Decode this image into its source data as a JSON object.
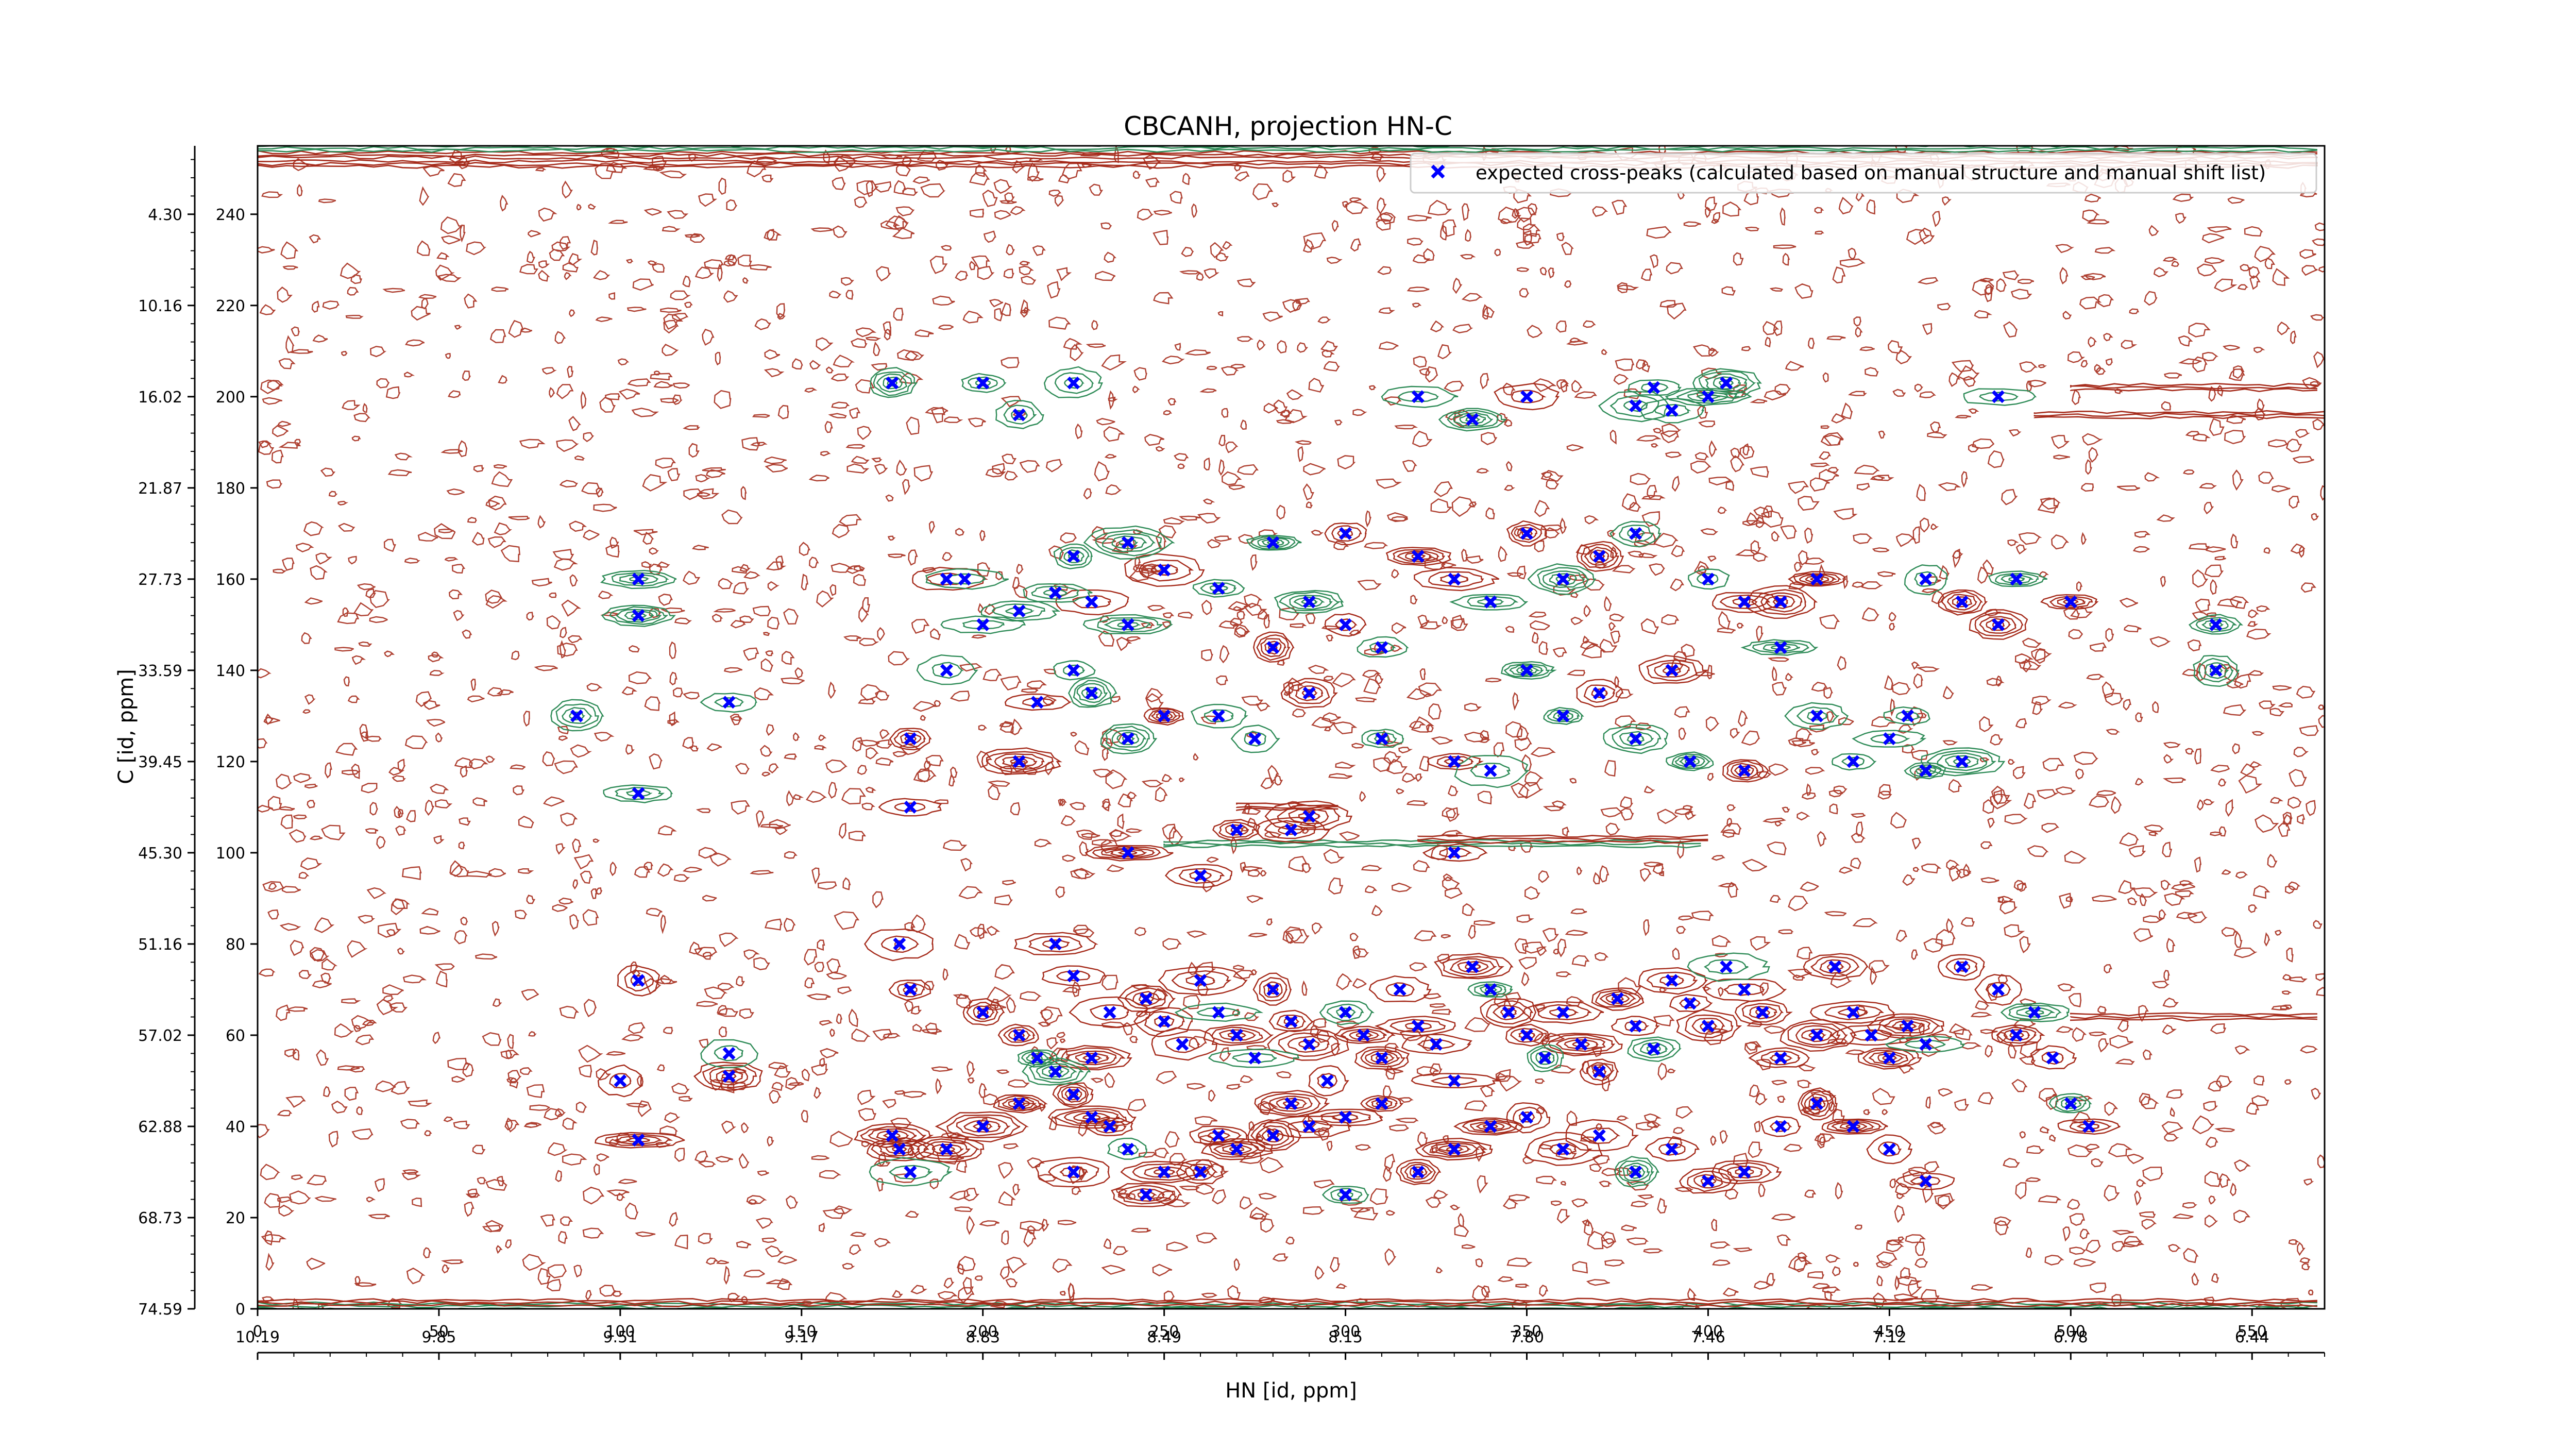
{
  "chart_data": {
    "type": "scatter",
    "title": "CBCANH, projection HN-C",
    "xlabel": "HN [id, ppm]",
    "ylabel": "C [id, ppm]",
    "xlim": [
      0,
      570
    ],
    "ylim": [
      0,
      255
    ],
    "x_ticks_primary": [
      "0",
      "50",
      "100",
      "150",
      "200",
      "250",
      "300",
      "350",
      "400",
      "450",
      "500",
      "550"
    ],
    "x_ticks_primary_values": [
      0,
      50,
      100,
      150,
      200,
      250,
      300,
      350,
      400,
      450,
      500,
      550
    ],
    "x_ticks_ppm": [
      "10.19",
      "9.85",
      "9.51",
      "9.17",
      "8.83",
      "8.49",
      "8.15",
      "7.80",
      "7.46",
      "7.12",
      "6.78",
      "6.44"
    ],
    "y_ticks_primary": [
      "0",
      "20",
      "40",
      "60",
      "80",
      "100",
      "120",
      "140",
      "160",
      "180",
      "200",
      "220",
      "240"
    ],
    "y_ticks_primary_values": [
      0,
      20,
      40,
      60,
      80,
      100,
      120,
      140,
      160,
      180,
      200,
      220,
      240
    ],
    "y_ticks_ppm": [
      "74.59",
      "68.73",
      "62.88",
      "57.02",
      "51.16",
      "45.30",
      "39.45",
      "33.59",
      "27.73",
      "21.87",
      "16.02",
      "10.16",
      "4.30"
    ],
    "legend_position": "top-right",
    "grid": false,
    "colors": {
      "expected_peaks": "#0000ff",
      "positive_contours": "#a52a1a",
      "negative_contours": "#2e8b57"
    },
    "series": [
      {
        "name": "expected cross-peaks (calculated based on manual structure and manual shift list)",
        "marker": "x",
        "points": [
          [
            105,
            160
          ],
          [
            105,
            152
          ],
          [
            130,
            133
          ],
          [
            105,
            113
          ],
          [
            88,
            130
          ],
          [
            105,
            72
          ],
          [
            100,
            50
          ],
          [
            130,
            56
          ],
          [
            130,
            51
          ],
          [
            105,
            37
          ],
          [
            175,
            203
          ],
          [
            200,
            203
          ],
          [
            210,
            196
          ],
          [
            225,
            203
          ],
          [
            195,
            160
          ],
          [
            180,
            125
          ],
          [
            180,
            110
          ],
          [
            180,
            70
          ],
          [
            177,
            80
          ],
          [
            177,
            35
          ],
          [
            190,
            160
          ],
          [
            200,
            150
          ],
          [
            210,
            153
          ],
          [
            220,
            157
          ],
          [
            230,
            155
          ],
          [
            225,
            165
          ],
          [
            240,
            168
          ],
          [
            250,
            162
          ],
          [
            265,
            158
          ],
          [
            280,
            168
          ],
          [
            240,
            150
          ],
          [
            225,
            140
          ],
          [
            230,
            135
          ],
          [
            240,
            125
          ],
          [
            250,
            130
          ],
          [
            265,
            130
          ],
          [
            275,
            125
          ],
          [
            210,
            120
          ],
          [
            190,
            140
          ],
          [
            215,
            133
          ],
          [
            290,
            155
          ],
          [
            300,
            150
          ],
          [
            310,
            145
          ],
          [
            320,
            165
          ],
          [
            330,
            160
          ],
          [
            340,
            155
          ],
          [
            350,
            170
          ],
          [
            360,
            160
          ],
          [
            370,
            165
          ],
          [
            380,
            170
          ],
          [
            335,
            195
          ],
          [
            350,
            200
          ],
          [
            320,
            200
          ],
          [
            300,
            170
          ],
          [
            280,
            145
          ],
          [
            290,
            135
          ],
          [
            310,
            125
          ],
          [
            330,
            120
          ],
          [
            340,
            118
          ],
          [
            350,
            140
          ],
          [
            360,
            130
          ],
          [
            370,
            135
          ],
          [
            380,
            125
          ],
          [
            390,
            140
          ],
          [
            400,
            160
          ],
          [
            410,
            155
          ],
          [
            420,
            145
          ],
          [
            430,
            130
          ],
          [
            440,
            120
          ],
          [
            450,
            125
          ],
          [
            380,
            198
          ],
          [
            385,
            202
          ],
          [
            390,
            197
          ],
          [
            400,
            200
          ],
          [
            405,
            203
          ],
          [
            420,
            155
          ],
          [
            430,
            160
          ],
          [
            460,
            160
          ],
          [
            470,
            155
          ],
          [
            480,
            150
          ],
          [
            485,
            160
          ],
          [
            500,
            155
          ],
          [
            540,
            150
          ],
          [
            540,
            140
          ],
          [
            470,
            120
          ],
          [
            455,
            130
          ],
          [
            460,
            118
          ],
          [
            480,
            200
          ],
          [
            395,
            120
          ],
          [
            410,
            118
          ],
          [
            330,
            100
          ],
          [
            270,
            105
          ],
          [
            260,
            95
          ],
          [
            285,
            105
          ],
          [
            290,
            108
          ],
          [
            240,
            100
          ],
          [
            230,
            55
          ],
          [
            220,
            80
          ],
          [
            225,
            73
          ],
          [
            235,
            65
          ],
          [
            245,
            68
          ],
          [
            250,
            63
          ],
          [
            255,
            58
          ],
          [
            260,
            72
          ],
          [
            265,
            65
          ],
          [
            270,
            60
          ],
          [
            275,
            55
          ],
          [
            280,
            70
          ],
          [
            285,
            63
          ],
          [
            290,
            58
          ],
          [
            295,
            50
          ],
          [
            300,
            65
          ],
          [
            305,
            60
          ],
          [
            310,
            55
          ],
          [
            315,
            70
          ],
          [
            320,
            62
          ],
          [
            325,
            58
          ],
          [
            330,
            50
          ],
          [
            335,
            75
          ],
          [
            340,
            70
          ],
          [
            345,
            65
          ],
          [
            350,
            60
          ],
          [
            355,
            55
          ],
          [
            360,
            65
          ],
          [
            365,
            58
          ],
          [
            370,
            52
          ],
          [
            375,
            68
          ],
          [
            380,
            62
          ],
          [
            385,
            57
          ],
          [
            390,
            72
          ],
          [
            395,
            67
          ],
          [
            400,
            62
          ],
          [
            405,
            75
          ],
          [
            410,
            70
          ],
          [
            415,
            65
          ],
          [
            420,
            55
          ],
          [
            430,
            60
          ],
          [
            435,
            75
          ],
          [
            440,
            65
          ],
          [
            445,
            60
          ],
          [
            450,
            55
          ],
          [
            455,
            62
          ],
          [
            460,
            58
          ],
          [
            470,
            75
          ],
          [
            480,
            70
          ],
          [
            485,
            60
          ],
          [
            490,
            65
          ],
          [
            495,
            55
          ],
          [
            500,
            45
          ],
          [
            505,
            40
          ],
          [
            200,
            65
          ],
          [
            210,
            60
          ],
          [
            215,
            55
          ],
          [
            220,
            52
          ],
          [
            225,
            47
          ],
          [
            230,
            42
          ],
          [
            235,
            40
          ],
          [
            240,
            35
          ],
          [
            250,
            30
          ],
          [
            260,
            30
          ],
          [
            270,
            35
          ],
          [
            280,
            38
          ],
          [
            290,
            40
          ],
          [
            300,
            42
          ],
          [
            310,
            45
          ],
          [
            320,
            30
          ],
          [
            330,
            35
          ],
          [
            340,
            40
          ],
          [
            350,
            42
          ],
          [
            360,
            35
          ],
          [
            370,
            38
          ],
          [
            380,
            30
          ],
          [
            390,
            35
          ],
          [
            400,
            28
          ],
          [
            410,
            30
          ],
          [
            420,
            40
          ],
          [
            430,
            45
          ],
          [
            440,
            40
          ],
          [
            450,
            35
          ],
          [
            460,
            28
          ],
          [
            200,
            40
          ],
          [
            210,
            45
          ],
          [
            190,
            35
          ],
          [
            180,
            30
          ],
          [
            175,
            38
          ],
          [
            225,
            30
          ],
          [
            245,
            25
          ],
          [
            265,
            38
          ],
          [
            285,
            45
          ],
          [
            300,
            25
          ]
        ]
      }
    ],
    "background": "2D NMR contour map: dense noise contours over the whole spectrum, strong cross-peak contours clustered at HN 180–490 with C 25–80 and 115–205, horizontal ridges near C 102 (HN 250–400), C 196, C 200 and C 253"
  },
  "legend": {
    "entry_label": "expected cross-peaks (calculated based on manual structure and manual shift list)"
  }
}
